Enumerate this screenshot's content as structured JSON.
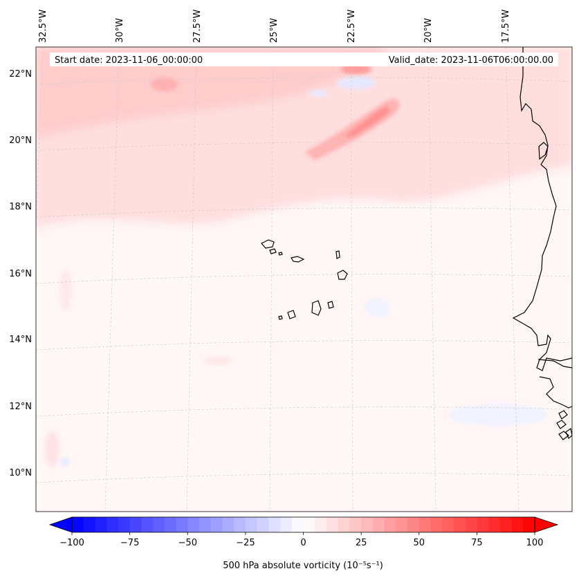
{
  "header": {
    "start_date": "Start date: 2023-11-06_00:00:00",
    "valid_date": "Valid_date: 2023-11-06T06:00:00.00"
  },
  "map": {
    "projection": "lambert-conformal",
    "lon_labels": [
      "32.5°W",
      "30°W",
      "27.5°W",
      "25°W",
      "22.5°W",
      "20°W",
      "17.5°W"
    ],
    "lat_labels": [
      "22°N",
      "20°N",
      "18°N",
      "16°N",
      "14°N",
      "12°N",
      "10°N"
    ],
    "gridlines": true,
    "field": "500 hPa absolute vorticity",
    "coastlines": [
      "Cape Verde islands",
      "West African coast"
    ]
  },
  "colorbar": {
    "label": "500 hPa absolute vorticity (10⁻⁵s⁻¹)",
    "ticks": [
      "−100",
      "−75",
      "−50",
      "−25",
      "0",
      "25",
      "50",
      "75",
      "100"
    ],
    "range": [
      -100,
      100
    ],
    "low_color": "#0000ff",
    "mid_color": "#ffffff",
    "high_color": "#ff0000",
    "extend": "both"
  }
}
